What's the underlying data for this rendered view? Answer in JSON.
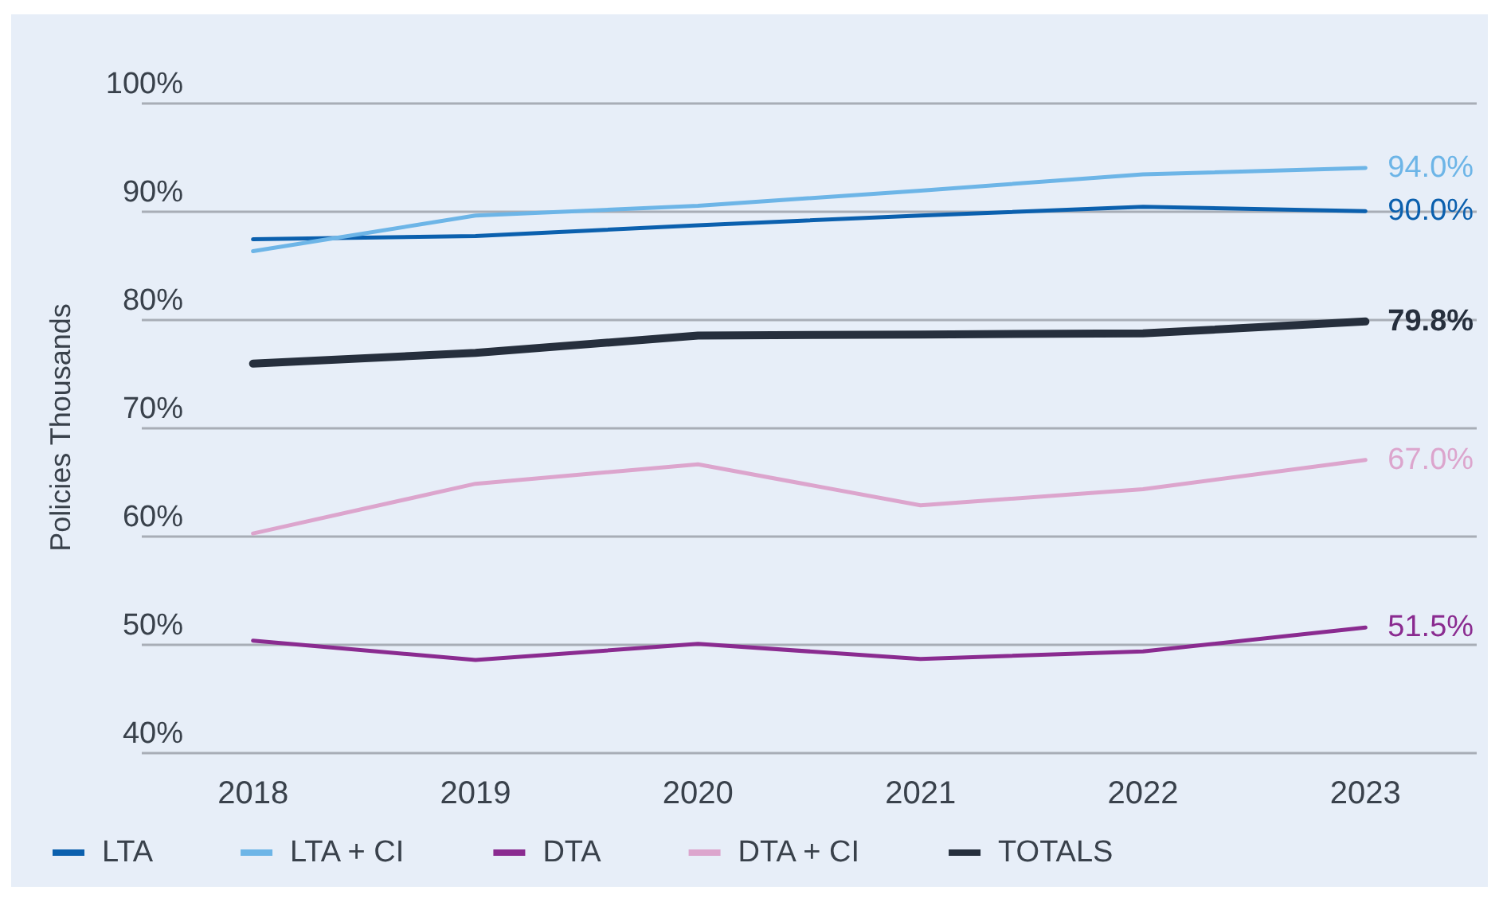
{
  "chart_data": {
    "type": "line",
    "ylabel": "Policies Thousands",
    "categories": [
      "2018",
      "2019",
      "2020",
      "2021",
      "2022",
      "2023"
    ],
    "series": [
      {
        "name": "LTA",
        "color": "#0b60ae",
        "values": [
          87.4,
          87.7,
          88.7,
          89.6,
          90.4,
          90.0
        ],
        "value_labels": [
          null,
          null,
          null,
          null,
          null,
          "90.0%"
        ]
      },
      {
        "name": "LTA + CI",
        "color": "#6db5e7",
        "values": [
          86.3,
          89.6,
          90.5,
          91.9,
          93.4,
          94.0
        ],
        "value_labels": [
          null,
          null,
          null,
          null,
          null,
          "94.0%"
        ]
      },
      {
        "name": "DTA",
        "color": "#8a2b90",
        "values": [
          50.3,
          48.5,
          50.0,
          48.6,
          49.3,
          51.5
        ],
        "value_labels": [
          null,
          null,
          null,
          null,
          null,
          "51.5%"
        ]
      },
      {
        "name": "DTA + CI",
        "color": "#dca5cd",
        "values": [
          60.2,
          64.8,
          66.6,
          62.8,
          64.3,
          67.0
        ],
        "value_labels": [
          null,
          null,
          null,
          null,
          null,
          "67.0%"
        ]
      },
      {
        "name": "TOTALS",
        "color": "#262f3d",
        "values": [
          75.9,
          76.9,
          78.5,
          78.6,
          78.7,
          79.8
        ],
        "value_labels": [
          null,
          null,
          null,
          null,
          null,
          "79.8%"
        ]
      }
    ],
    "ylim": [
      40,
      100
    ],
    "yticks": [
      {
        "value": 40,
        "label": "40%"
      },
      {
        "value": 50,
        "label": "50%"
      },
      {
        "value": 60,
        "label": "60%"
      },
      {
        "value": 70,
        "label": "70%"
      },
      {
        "value": 80,
        "label": "80%"
      },
      {
        "value": 90,
        "label": "90%"
      },
      {
        "value": 100,
        "label": "100%"
      }
    ],
    "grid": "y",
    "legend": "bottom left",
    "marker": "none"
  }
}
